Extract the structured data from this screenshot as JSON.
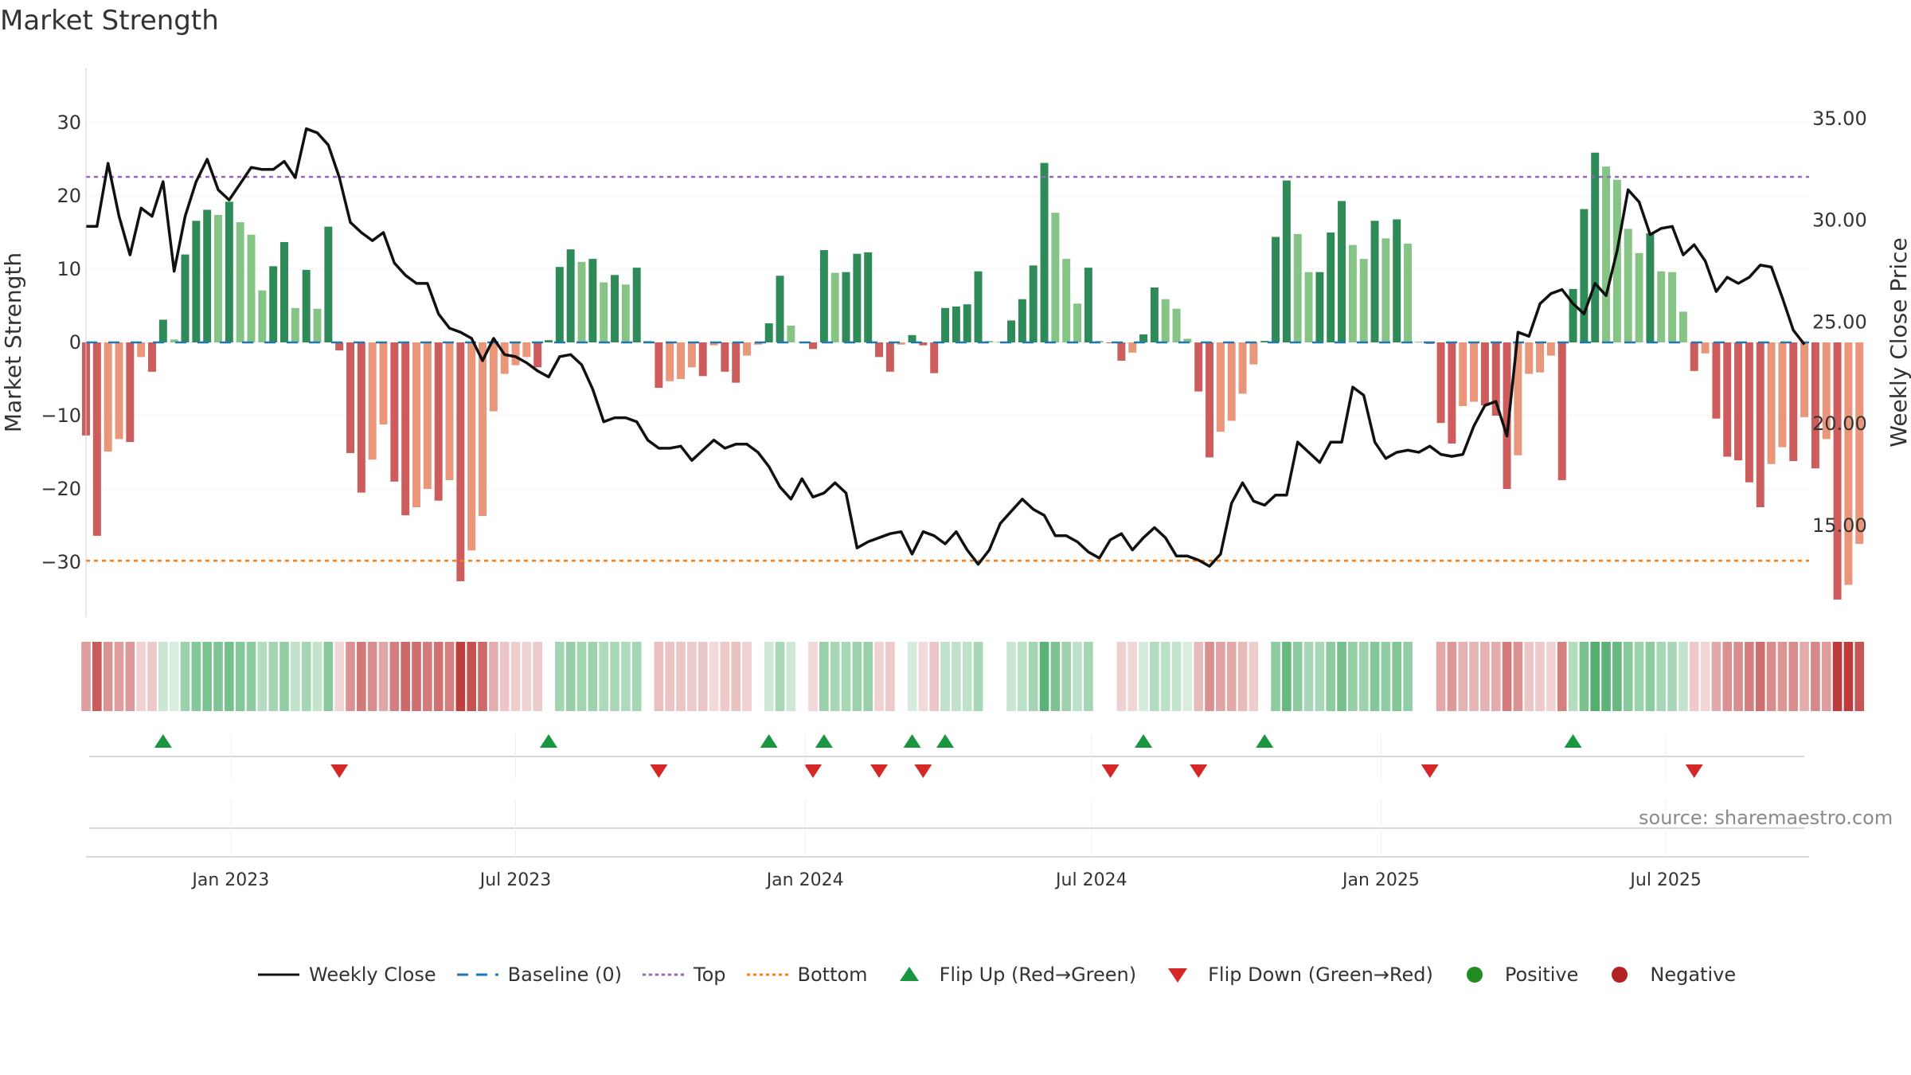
{
  "title": "Market Strength",
  "source": "source: sharemaestro.com",
  "colors": {
    "strong_green": "#2e8b57",
    "light_green": "#86c486",
    "strong_red": "#cd5c5c",
    "light_red": "#e9967a",
    "price_line": "#111111",
    "baseline": "#1f77b4",
    "top_line": "#9467bd",
    "bottom_line": "#ff7f0e",
    "flip_up": "#1a9641",
    "flip_down": "#d62728",
    "positive": "#228b22",
    "negative": "#b22222"
  },
  "legend": [
    {
      "key": "weekly_close",
      "label": "Weekly Close",
      "icon": "solid-line-icon"
    },
    {
      "key": "baseline",
      "label": "Baseline (0)",
      "icon": "dashed-line-icon"
    },
    {
      "key": "top",
      "label": "Top",
      "icon": "dotted-line-icon"
    },
    {
      "key": "bottom",
      "label": "Bottom",
      "icon": "dotted-line-icon"
    },
    {
      "key": "flip_up",
      "label": "Flip Up (Red→Green)",
      "icon": "triangle-up-icon"
    },
    {
      "key": "flip_down",
      "label": "Flip Down (Green→Red)",
      "icon": "triangle-down-icon"
    },
    {
      "key": "positive",
      "label": "Positive",
      "icon": "circle-icon"
    },
    {
      "key": "negative",
      "label": "Negative",
      "icon": "circle-icon"
    }
  ],
  "chart_data": {
    "type": "bar",
    "xlabel": "",
    "ylabel": "Market Strength",
    "y2label": "Weekly Close Price",
    "ylim": [
      -37.5,
      37.5
    ],
    "yticks": [
      30,
      20,
      10,
      0,
      -10,
      -20,
      -30
    ],
    "ytick_labels": [
      "30",
      "20",
      "10",
      "0",
      "−10",
      "−20",
      "−30"
    ],
    "y2lim": [
      10.5,
      37.5
    ],
    "y2ticks": [
      35,
      30,
      25,
      20,
      15
    ],
    "y2tick_labels": [
      "35.00",
      "30.00",
      "25.00",
      "20.00",
      "15.00"
    ],
    "xlim": [
      "2022-10-01",
      "2025-09-30"
    ],
    "xticks": [
      "2023-01-01",
      "2023-07-01",
      "2024-01-01",
      "2024-07-01",
      "2025-01-01",
      "2025-07-01"
    ],
    "xtick_labels": [
      "Jan 2023",
      "Jul 2023",
      "Jan 2024",
      "Jul 2024",
      "Jan 2025",
      "Jul 2025"
    ],
    "top_level": 22.6,
    "bottom_level": -29.8,
    "grid": true,
    "legend_position": "bottom",
    "start_date": "2022-10-01",
    "strength": [
      -12.7,
      -26.4,
      -14.9,
      -13.2,
      -13.6,
      -2,
      -4,
      3.1,
      0.4,
      12,
      16.6,
      18.1,
      17.4,
      19.2,
      16.4,
      14.7,
      7.1,
      10.4,
      13.7,
      4.7,
      9.9,
      4.6,
      15.8,
      -1.1,
      -15.1,
      -20.5,
      -16,
      -11.2,
      -19,
      -23.6,
      -22.5,
      -20,
      -21.6,
      -18.8,
      -32.6,
      -28.4,
      -23.7,
      -9.4,
      -4.3,
      -3.1,
      -2,
      -3.4,
      0.3,
      10.3,
      12.7,
      11,
      11.4,
      8.2,
      9.2,
      7.9,
      10.2,
      0.2,
      -6.2,
      -5.3,
      -5,
      -3.4,
      -4.6,
      -0.4,
      -4,
      -5.5,
      -1.8,
      -0.3,
      2.6,
      9.1,
      2.3,
      0.1,
      -0.9,
      12.6,
      9.5,
      9.6,
      12.1,
      12.3,
      -2,
      -4,
      -0.3,
      1,
      -0.4,
      -4.2,
      4.7,
      4.9,
      5.2,
      9.7,
      0.2,
      0.1,
      3,
      5.9,
      10.5,
      24.5,
      17.7,
      11.4,
      5.3,
      10.2,
      0.2,
      -0.1,
      -2.5,
      -1.4,
      1.1,
      7.5,
      5.9,
      4.6,
      0.5,
      -6.7,
      -15.7,
      -12.2,
      -10.7,
      -7,
      -3,
      0.2,
      14.4,
      22.1,
      14.8,
      9.6,
      9.6,
      15,
      19.3,
      13.3,
      11.4,
      16.6,
      14.2,
      16.8,
      13.5,
      0.1,
      -0.2,
      -11,
      -13.8,
      -8.7,
      -8.1,
      -8.6,
      -10,
      -20,
      -15.4,
      -4.3,
      -4.1,
      -1.8,
      -18.8,
      7.3,
      18.2,
      25.9,
      24,
      22.2,
      15.5,
      12.2,
      14.9,
      9.7,
      9.6,
      4.2,
      -3.9,
      -1.5,
      -10.4,
      -15.6,
      -16.1,
      -19.1,
      -22.5,
      -16.6,
      -14.3,
      -16.2,
      -10.2,
      -17.2,
      -13.2,
      -35.1,
      -33.1,
      -27.5
    ],
    "weekly_close": [
      29.7,
      29.7,
      32.8,
      30.2,
      28.3,
      30.6,
      30.2,
      31.9,
      27.5,
      30.2,
      31.9,
      33,
      31.5,
      31,
      31.8,
      32.6,
      32.5,
      32.5,
      32.9,
      32.1,
      34.5,
      34.3,
      33.7,
      32.1,
      29.9,
      29.4,
      29,
      29.4,
      27.9,
      27.3,
      26.9,
      26.9,
      25.4,
      24.7,
      24.5,
      24.2,
      23.1,
      24.2,
      23.4,
      23.3,
      23,
      22.6,
      22.3,
      23.3,
      23.4,
      22.9,
      21.7,
      20.1,
      20.3,
      20.3,
      20.1,
      19.2,
      18.8,
      18.8,
      18.9,
      18.2,
      18.7,
      19.2,
      18.8,
      19,
      19,
      18.6,
      17.9,
      16.9,
      16.3,
      17.3,
      16.4,
      16.6,
      17.1,
      16.6,
      13.9,
      14.2,
      14.4,
      14.6,
      14.7,
      13.6,
      14.7,
      14.5,
      14.1,
      14.7,
      13.8,
      13.1,
      13.8,
      15.1,
      15.7,
      16.3,
      15.8,
      15.5,
      14.5,
      14.5,
      14.2,
      13.7,
      13.4,
      14.3,
      14.6,
      13.8,
      14.4,
      14.9,
      14.4,
      13.5,
      13.5,
      13.3,
      13,
      13.6,
      16.1,
      17.1,
      16.2,
      16,
      16.5,
      16.5,
      19.1,
      18.6,
      18.1,
      19.1,
      19.1,
      21.8,
      21.4,
      19.1,
      18.3,
      18.6,
      18.7,
      18.6,
      18.9,
      18.5,
      18.4,
      18.5,
      19.9,
      20.9,
      21.1,
      19.4,
      24.5,
      24.3,
      25.9,
      26.4,
      26.6,
      25.9,
      25.4,
      26.9,
      26.3,
      28.5,
      31.5,
      30.9,
      29.3,
      29.6,
      29.7,
      28.3,
      28.8,
      28,
      26.5,
      27.2,
      26.9,
      27.2,
      27.8,
      27.7,
      26.2,
      24.6,
      23.9
    ]
  }
}
